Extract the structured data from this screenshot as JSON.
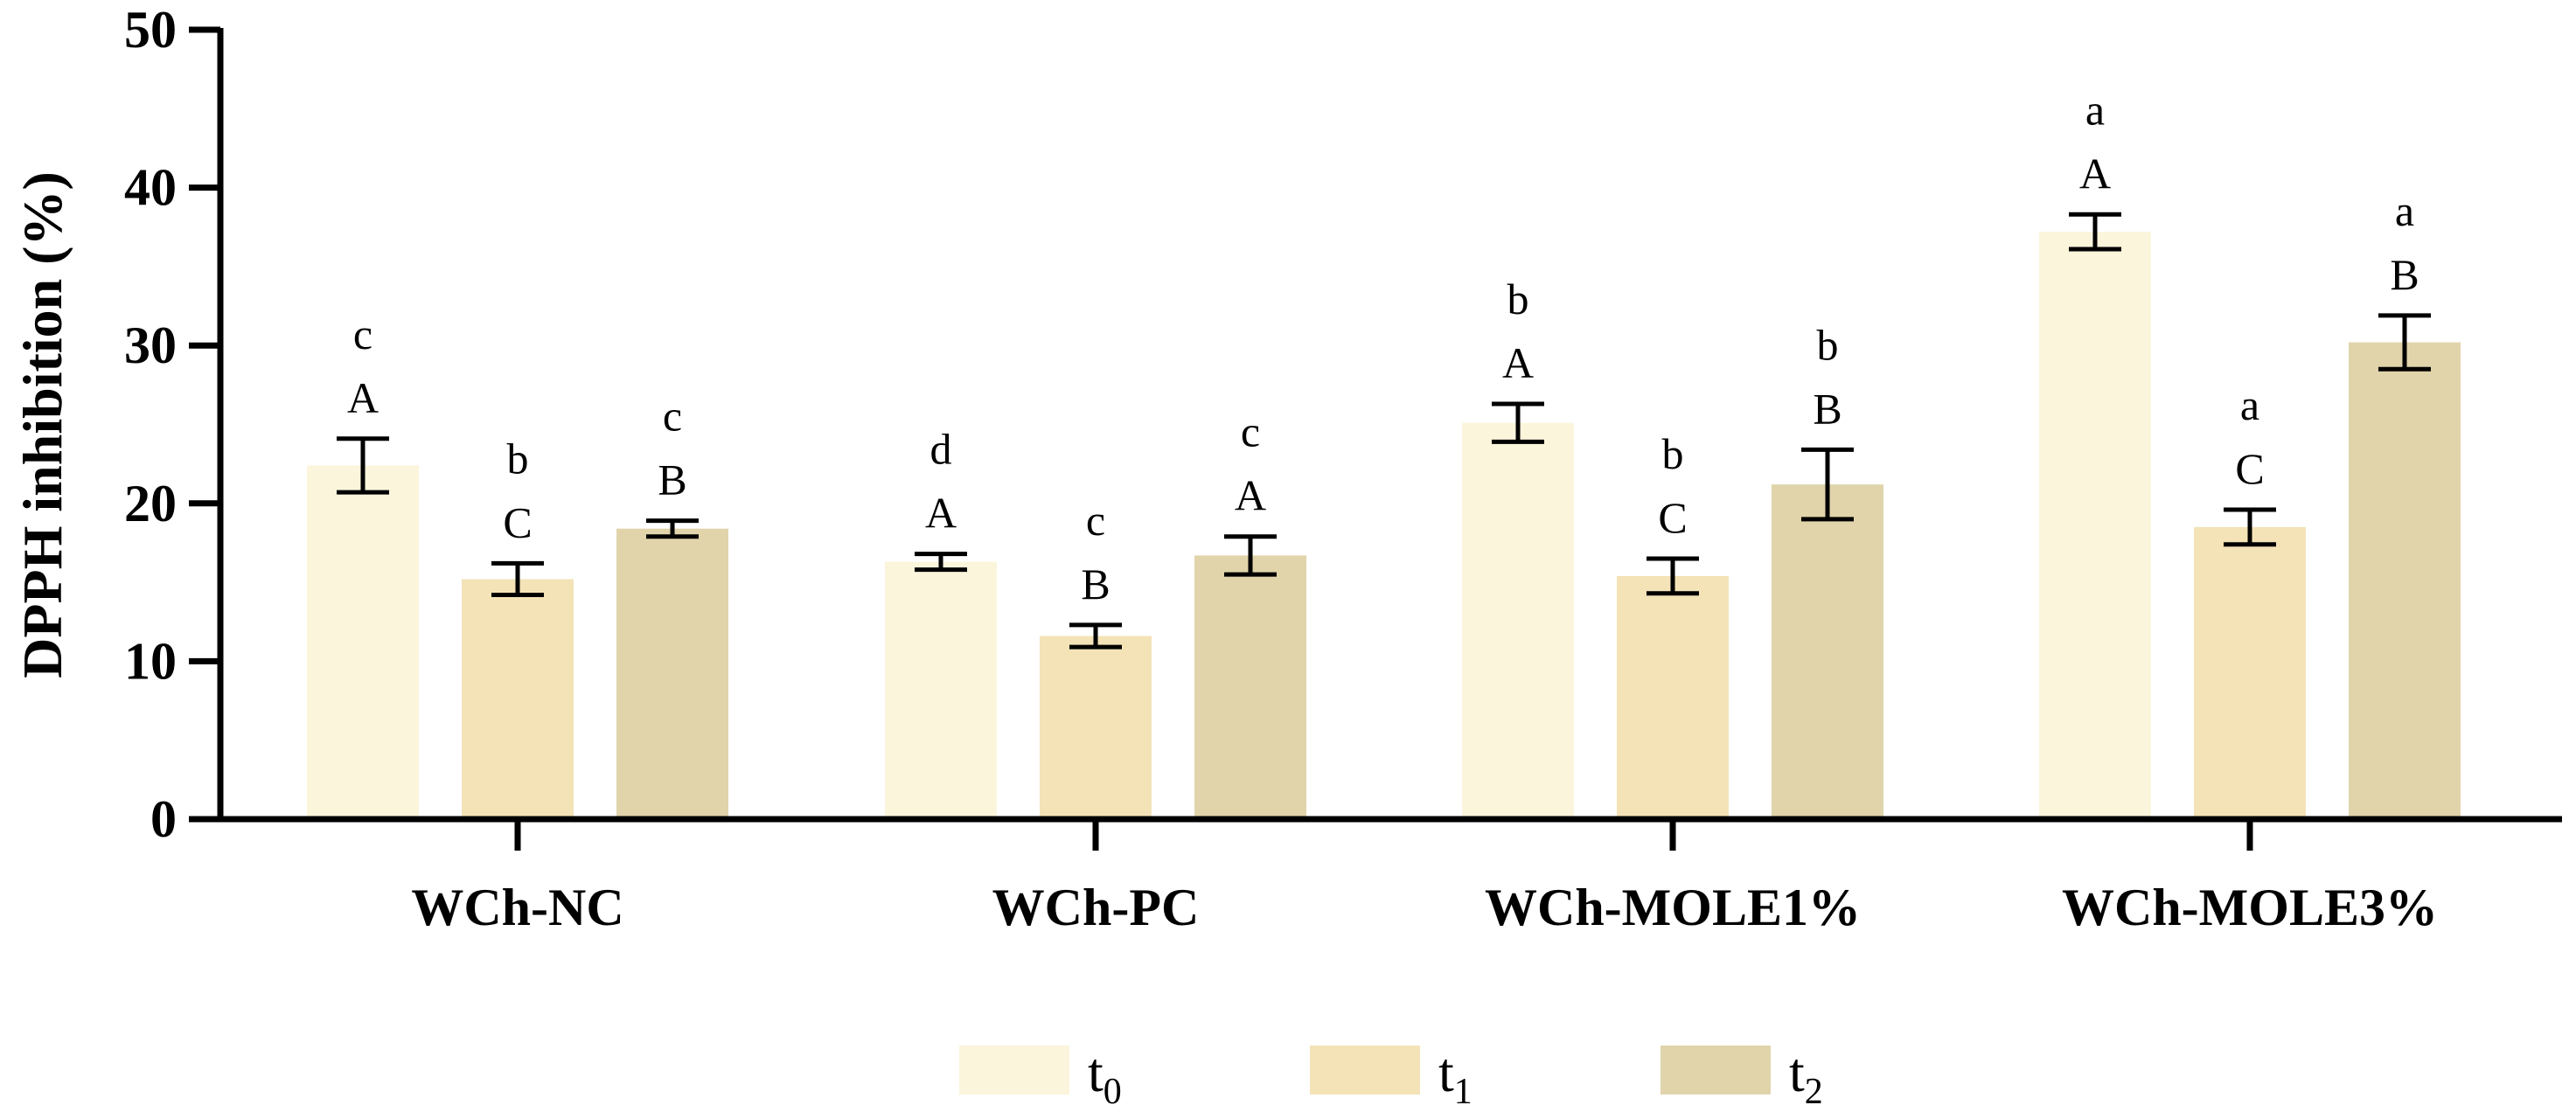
{
  "chart_data": {
    "type": "bar",
    "ylabel": "DPPH inhibition (%)",
    "ylim": [
      0,
      50
    ],
    "yticks": [
      "0",
      "10",
      "20",
      "30",
      "40",
      "50"
    ],
    "categories": [
      "WCh-NC",
      "WCh-PC",
      "WCh-MOLE1%",
      "WCh-MOLE3%"
    ],
    "legend_position": "bottom-center",
    "series": [
      {
        "name": "t",
        "subscript": "0",
        "color": "#FBF5DC",
        "values": [
          22.4,
          16.3,
          25.1,
          37.2
        ],
        "errors": [
          1.7,
          0.5,
          1.2,
          1.1
        ],
        "upper_letters": [
          "A",
          "A",
          "A",
          "A"
        ],
        "lower_letters": [
          "c",
          "d",
          "b",
          "a"
        ]
      },
      {
        "name": "t",
        "subscript": "1",
        "color": "#F3E3B7",
        "values": [
          15.2,
          11.6,
          15.4,
          18.5
        ],
        "errors": [
          1.0,
          0.7,
          1.1,
          1.1
        ],
        "upper_letters": [
          "C",
          "B",
          "C",
          "C"
        ],
        "lower_letters": [
          "b",
          "c",
          "b",
          "a"
        ]
      },
      {
        "name": "t",
        "subscript": "2",
        "color": "#E1D4AB",
        "values": [
          18.4,
          16.7,
          21.2,
          30.2
        ],
        "errors": [
          0.5,
          1.2,
          2.2,
          1.7
        ],
        "upper_letters": [
          "B",
          "A",
          "B",
          "B"
        ],
        "lower_letters": [
          "c",
          "c",
          "b",
          "a"
        ]
      }
    ]
  }
}
